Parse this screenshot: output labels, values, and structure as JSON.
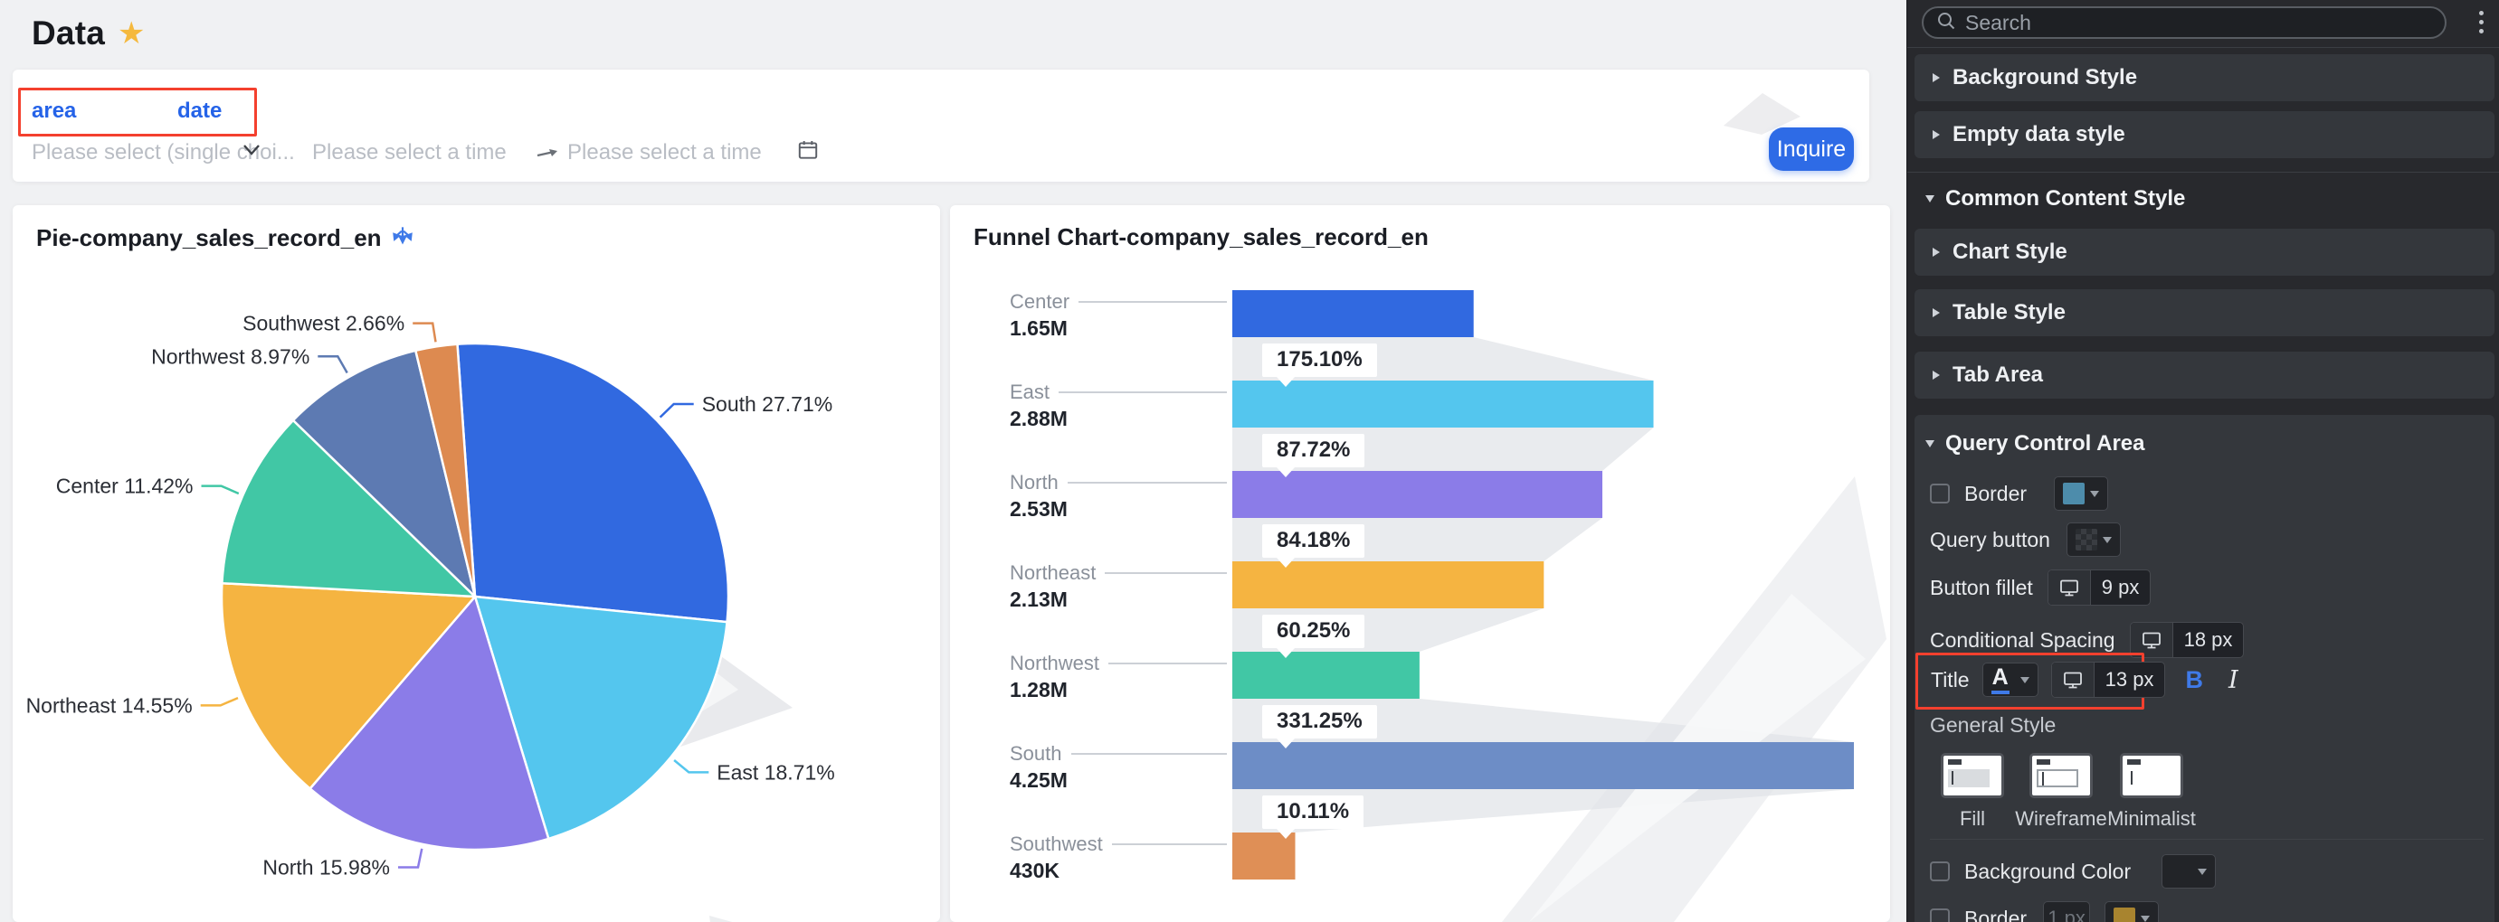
{
  "header": {
    "title": "Data",
    "star_icon": "star"
  },
  "query_panel": {
    "filters": [
      {
        "label": "area"
      },
      {
        "label": "date"
      }
    ],
    "select_placeholder": "Please select (single choi...",
    "time_placeholder_1": "Please select a time",
    "time_placeholder_2": "Please select a time",
    "inquire_label": "Inquire"
  },
  "chart_data": [
    {
      "type": "pie",
      "title": "Pie-company_sales_record_en",
      "categories": [
        "South",
        "East",
        "North",
        "Northeast",
        "Center",
        "Northwest",
        "Southwest"
      ],
      "values": [
        27.71,
        18.71,
        15.98,
        14.55,
        11.42,
        8.97,
        2.66
      ],
      "colors": [
        "#3169e0",
        "#54c6ee",
        "#8b7ce8",
        "#f5b441",
        "#41c7a5",
        "#5d7ab2",
        "#dd8a50"
      ],
      "start_angle_deg": -4,
      "label_format": "name percent",
      "legend": "none"
    },
    {
      "type": "funnel",
      "title": "Funnel Chart-company_sales_record_en",
      "categories": [
        "Center",
        "East",
        "North",
        "Northeast",
        "Northwest",
        "South",
        "Southwest"
      ],
      "values_millions": [
        1.65,
        2.88,
        2.53,
        2.13,
        1.28,
        4.25,
        0.43
      ],
      "value_labels": [
        "1.65M",
        "2.88M",
        "2.53M",
        "2.13M",
        "1.28M",
        "4.25M",
        "430K"
      ],
      "conversion_labels": [
        "175.10%",
        "87.72%",
        "84.18%",
        "60.25%",
        "331.25%",
        "10.11%"
      ],
      "colors": [
        "#3169e0",
        "#54c6ee",
        "#8b7ce8",
        "#f5b441",
        "#41c7a5",
        "#6d8dc6",
        "#df8f56"
      ],
      "bar_width_rule": "proportional to value, max bar = 4.25M"
    }
  ],
  "sidebar": {
    "search_placeholder": "Search",
    "sections": {
      "background_style": "Background Style",
      "empty_data_style": "Empty data style",
      "common_content_style": "Common Content Style",
      "chart_style": "Chart Style",
      "table_style": "Table Style",
      "tab_area": "Tab Area",
      "query_control_area": "Query Control Area"
    },
    "query_control": {
      "border_label": "Border",
      "border_swatch_color": "#4d8cab",
      "query_button_label": "Query button",
      "button_fillet_label": "Button fillet",
      "button_fillet_value": "9  px",
      "conditional_spacing_label": "Conditional Spacing",
      "conditional_spacing_value": "18 px",
      "title_label": "Title",
      "title_font_letter": "A",
      "title_size_value": "13 px",
      "bold_label": "B",
      "italic_label": "I",
      "general_style_label": "General Style",
      "style_options": [
        "Fill",
        "Wireframe",
        "Minimalist"
      ],
      "background_color_label": "Background Color",
      "border2_label": "Border",
      "border2_width_placeholder": "1 px",
      "border2_swatch_color": "#a8842f"
    },
    "accent_blue": "#3f7ae8"
  }
}
